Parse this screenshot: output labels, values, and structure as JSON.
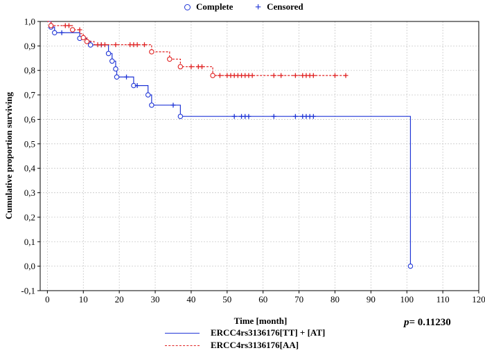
{
  "legend_top": {
    "complete_label": "Complete",
    "censored_label": "Censored"
  },
  "p_value": {
    "prefix": "p",
    "text": "= 0.11230"
  },
  "colors": {
    "series1": "#1f35d6",
    "series2": "#e02020",
    "axis": "#000000",
    "grid": "#c8c8c8"
  },
  "chart_data": {
    "type": "line",
    "subtype": "kaplan-meier",
    "xlabel": "Time [month]",
    "ylabel": "Cumulative proportion surviving",
    "xlim": [
      -2,
      120
    ],
    "ylim": [
      -0.1,
      1.0
    ],
    "x_ticks": [
      "0",
      "10",
      "20",
      "30",
      "40",
      "50",
      "60",
      "70",
      "80",
      "90",
      "100",
      "110",
      "120"
    ],
    "x_tick_values": [
      0,
      10,
      20,
      30,
      40,
      50,
      60,
      70,
      80,
      90,
      100,
      110,
      120
    ],
    "y_ticks": [
      "-0,1",
      "0,0",
      "0,1",
      "0,2",
      "0,3",
      "0,4",
      "0,5",
      "0,6",
      "0,7",
      "0,8",
      "0,9",
      "1,0"
    ],
    "y_tick_values": [
      -0.1,
      0.0,
      0.1,
      0.2,
      0.3,
      0.4,
      0.5,
      0.6,
      0.7,
      0.8,
      0.9,
      1.0
    ],
    "grid": true,
    "series": [
      {
        "name": "ERCC4rs3136176[TT] + [AT]",
        "color": "#1f35d6",
        "style": "solid",
        "steps": [
          [
            1,
            0.977
          ],
          [
            2,
            0.954
          ],
          [
            9,
            0.931
          ],
          [
            11,
            0.92
          ],
          [
            12,
            0.904
          ],
          [
            17,
            0.869
          ],
          [
            18,
            0.838
          ],
          [
            19,
            0.806
          ],
          [
            19.3,
            0.773
          ],
          [
            24,
            0.738
          ],
          [
            28,
            0.7
          ],
          [
            29,
            0.658
          ],
          [
            37,
            0.612
          ],
          [
            101,
            0.0
          ]
        ],
        "end_x": 101,
        "complete": [
          [
            1,
            0.977
          ],
          [
            2,
            0.954
          ],
          [
            9,
            0.931
          ],
          [
            12,
            0.904
          ],
          [
            17,
            0.869
          ],
          [
            18,
            0.838
          ],
          [
            19,
            0.806
          ],
          [
            19.3,
            0.773
          ],
          [
            24,
            0.738
          ],
          [
            28,
            0.7
          ],
          [
            29,
            0.658
          ],
          [
            37,
            0.612
          ],
          [
            101,
            0.0
          ]
        ],
        "censored": [
          [
            4,
            0.954
          ],
          [
            15,
            0.904
          ],
          [
            22,
            0.773
          ],
          [
            25,
            0.738
          ],
          [
            35,
            0.658
          ],
          [
            52,
            0.612
          ],
          [
            54,
            0.612
          ],
          [
            55,
            0.612
          ],
          [
            56,
            0.612
          ],
          [
            63,
            0.612
          ],
          [
            69,
            0.612
          ],
          [
            71,
            0.612
          ],
          [
            72,
            0.612
          ],
          [
            73,
            0.612
          ],
          [
            74,
            0.612
          ]
        ]
      },
      {
        "name": "ERCC4rs3136176[AA]",
        "color": "#e02020",
        "style": "dashed",
        "steps": [
          [
            1,
            0.983
          ],
          [
            7,
            0.966
          ],
          [
            9,
            0.95
          ],
          [
            10,
            0.934
          ],
          [
            11,
            0.918
          ],
          [
            13,
            0.905
          ],
          [
            29,
            0.876
          ],
          [
            34,
            0.846
          ],
          [
            37,
            0.815
          ],
          [
            46,
            0.779
          ]
        ],
        "end_x": 83,
        "complete": [
          [
            1,
            0.983
          ],
          [
            7,
            0.966
          ],
          [
            10,
            0.934
          ],
          [
            11,
            0.918
          ],
          [
            29,
            0.876
          ],
          [
            34,
            0.846
          ],
          [
            37,
            0.815
          ],
          [
            46,
            0.779
          ]
        ],
        "censored": [
          [
            5,
            0.983
          ],
          [
            6,
            0.983
          ],
          [
            9,
            0.966
          ],
          [
            14,
            0.905
          ],
          [
            15,
            0.905
          ],
          [
            16,
            0.905
          ],
          [
            19,
            0.905
          ],
          [
            23,
            0.905
          ],
          [
            24,
            0.905
          ],
          [
            25,
            0.905
          ],
          [
            27,
            0.905
          ],
          [
            40,
            0.815
          ],
          [
            42,
            0.815
          ],
          [
            43,
            0.815
          ],
          [
            48,
            0.779
          ],
          [
            50,
            0.779
          ],
          [
            51,
            0.779
          ],
          [
            52,
            0.779
          ],
          [
            53,
            0.779
          ],
          [
            54,
            0.779
          ],
          [
            55,
            0.779
          ],
          [
            56,
            0.779
          ],
          [
            57,
            0.779
          ],
          [
            63,
            0.779
          ],
          [
            65,
            0.779
          ],
          [
            69,
            0.779
          ],
          [
            71,
            0.779
          ],
          [
            72,
            0.779
          ],
          [
            73,
            0.779
          ],
          [
            74,
            0.779
          ],
          [
            80,
            0.779
          ],
          [
            83,
            0.779
          ]
        ]
      }
    ]
  }
}
